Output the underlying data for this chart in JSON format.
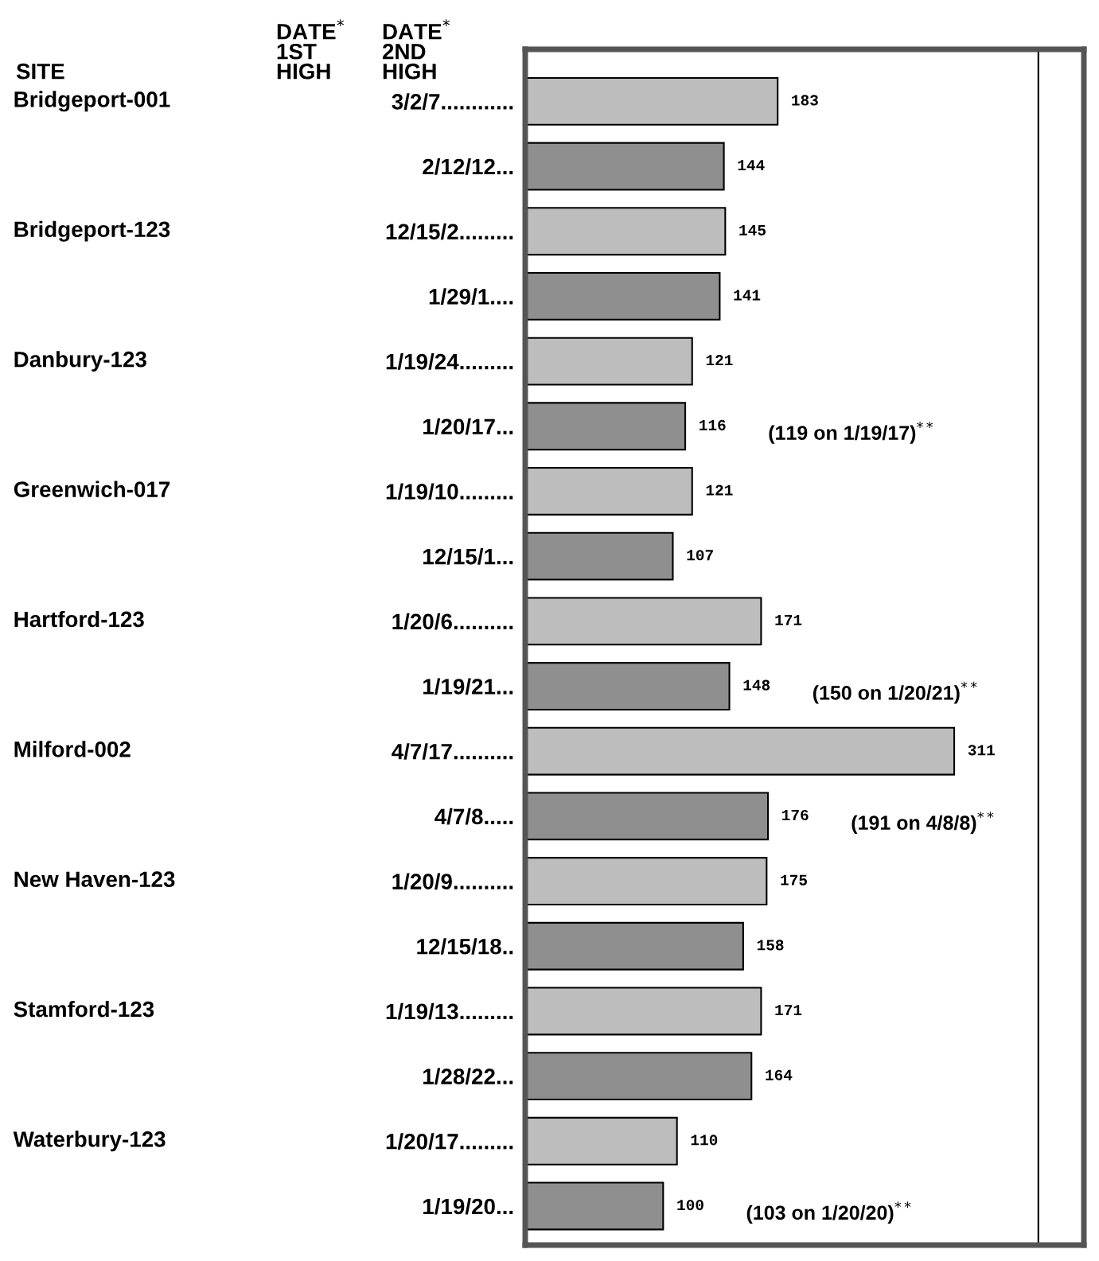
{
  "chart_data": {
    "type": "bar",
    "orientation": "horizontal",
    "categories": [
      "3/2/7............",
      "2/12/12...",
      "12/15/2.........",
      "1/29/1....",
      "1/19/24.........",
      "1/20/17...",
      "1/19/10.........",
      "12/15/1...",
      "1/20/6..........",
      "1/19/21...",
      "4/7/17..........",
      "4/7/8.....",
      "1/20/9..........",
      "12/15/18..",
      "1/19/13.........",
      "1/28/22...",
      "1/20/17.........",
      "1/19/20..."
    ],
    "values": [
      183,
      144,
      145,
      141,
      121,
      116,
      121,
      107,
      171,
      148,
      311,
      176,
      175,
      158,
      171,
      164,
      110,
      100
    ],
    "colors": [
      "#bdbdbd",
      "#8f8f8f",
      "#bdbdbd",
      "#8f8f8f",
      "#bdbdbd",
      "#8f8f8f",
      "#bdbdbd",
      "#8f8f8f",
      "#bdbdbd",
      "#8f8f8f",
      "#bdbdbd",
      "#8f8f8f",
      "#bdbdbd",
      "#8f8f8f",
      "#bdbdbd",
      "#8f8f8f",
      "#bdbdbd",
      "#8f8f8f"
    ],
    "data_labels": true,
    "xlim": [
      0,
      405
    ],
    "tick_labels": "y",
    "grid": false,
    "ref_lines": [
      {
        "axis": "x",
        "value": 372,
        "color": "#000000"
      }
    ],
    "annotations": [
      "SITE",
      "DATE$^{*}$\n1ST\nHIGH",
      "DATE$^{*}$\n2ND\nHIGH",
      "Bridgeport-001",
      "Bridgeport-123",
      "Danbury-123",
      "Greenwich-017",
      "Hartford-123",
      "Milford-002",
      "New Haven-123",
      "Stamford-123",
      "Waterbury-123",
      "(119 on 1/19/17)$^{**}$",
      "(150 on 1/20/21)$^{**}$",
      "(191 on 4/8/8)$^{**}$",
      "(103 on 1/20/20)$^{**}$"
    ]
  }
}
